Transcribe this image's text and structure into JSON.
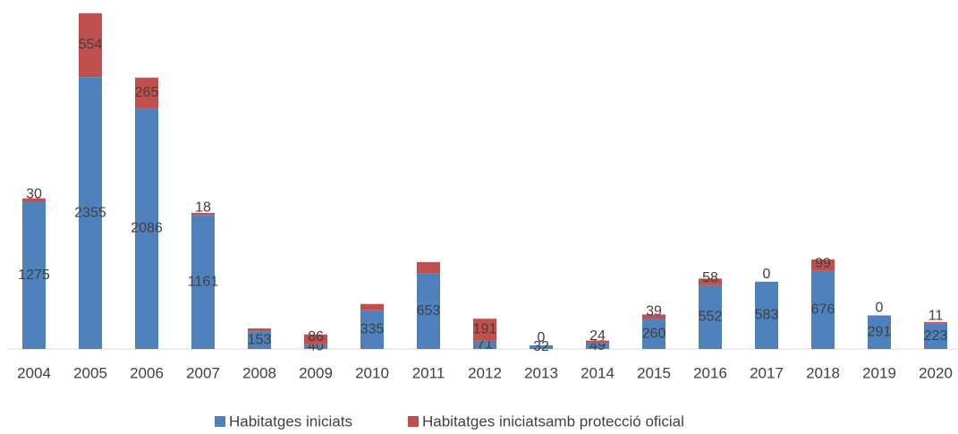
{
  "chart_data": {
    "type": "stacked_bar",
    "categories": [
      "2004",
      "2005",
      "2006",
      "2007",
      "2008",
      "2009",
      "2010",
      "2011",
      "2012",
      "2013",
      "2014",
      "2015",
      "2016",
      "2017",
      "2018",
      "2019",
      "2020"
    ],
    "series": [
      {
        "name": "Habitatges iniciats",
        "color": "#4f81bd",
        "values": [
          1275,
          2355,
          2086,
          1161,
          153,
          40,
          335,
          653,
          71,
          32,
          49,
          260,
          552,
          583,
          676,
          291,
          223
        ]
      },
      {
        "name": "Habitatges iniciatsamb protecció oficial",
        "color": "#c0504d",
        "values": [
          30,
          554,
          265,
          18,
          25,
          86,
          55,
          100,
          191,
          0,
          24,
          39,
          58,
          0,
          99,
          0,
          11
        ],
        "value_labels": [
          "30",
          "554",
          "265",
          "18",
          null,
          "86",
          null,
          null,
          "191",
          "0",
          "24",
          "39",
          "58",
          "0",
          "99",
          "0",
          "11"
        ]
      }
    ],
    "ylim": [
      0,
      3000
    ],
    "legend": "bottom"
  }
}
